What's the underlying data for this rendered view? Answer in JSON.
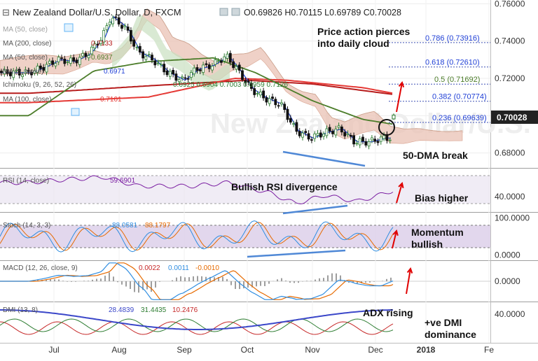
{
  "header": {
    "collapse_glyph": "⊟",
    "title": "New Zealand Dollar/U.S. Dollar, D, FXCM",
    "ohlc": "O0.69826  H0.70115  L0.69789  C0.70028"
  },
  "legend": {
    "main": [
      {
        "text": "MA (50, close)",
        "value": ""
      },
      {
        "text": "MA (200, close)",
        "value": "0.7133"
      },
      {
        "text": "MA (50, close)",
        "value": "0.6937"
      },
      {
        "text": "MA (5, close)",
        "value": "0.6971"
      },
      {
        "text": "Ichimoku (9, 26, 52, 26)",
        "value": "0.6925  0.6904  0.7003  0.6959  0.7126"
      },
      {
        "text": "MA (100, close)",
        "value": "0.7101"
      }
    ],
    "rsi": {
      "text": "RSI (14, close)",
      "value": "59.6901"
    },
    "stoch": {
      "text": "Stoch (14, 3, 3)",
      "value1": "88.0581",
      "value2": "88.1797"
    },
    "macd": {
      "text": "MACD (12, 26, close, 9)",
      "v1": "0.0022",
      "v2": "0.0011",
      "v3": "-0.0010"
    },
    "dmi": {
      "text": "DMI (13, 8)",
      "v1": "28.4839",
      "v2": "31.4435",
      "v3": "10.2476"
    }
  },
  "annotations": {
    "cloud": "Price action pierces into daily cloud",
    "dma_break": "50-DMA break",
    "rsi_div": "Bullish RSI  divergence",
    "bias": "Bias higher",
    "momentum": "Momentum bullish",
    "adx": "ADX rising",
    "dmi": "+ve DMI dominance"
  },
  "fibonacci": [
    {
      "ratio": "0.786",
      "value": 0.73916,
      "label": "0.786 (0.73916)"
    },
    {
      "ratio": "0.618",
      "value": 0.7261,
      "label": "0.618 (0.72610)"
    },
    {
      "ratio": "0.5",
      "value": 0.71692,
      "label": "0.5 (0.71692)"
    },
    {
      "ratio": "0.382",
      "value": 0.70774,
      "label": "0.382 (0.70774)"
    },
    {
      "ratio": "0.236",
      "value": 0.69639,
      "label": "0.236 (0.69639)"
    }
  ],
  "price_tag": "0.70028",
  "colors": {
    "price_tag_bg": "#222222",
    "candle_up": "#2e7d32",
    "candle_down": "#111111",
    "ma200": "#b71c1c",
    "ma100": "#e53935",
    "ma50": "#4c7d2a",
    "ma5": "#1f3fd6",
    "cloud_bear": "#e9c2b4",
    "cloud_bull": "#c9dfc0",
    "rsi_line": "#7b1fa2",
    "stoch_k": "#2f8de0",
    "stoch_d": "#e66a00",
    "macd_line": "#2f8de0",
    "macd_signal": "#e66a00",
    "adx": "#3b47c9",
    "di_plus": "#2e7d32",
    "di_minus": "#c62828",
    "annotation_arrow": "#e00000",
    "divergence_line": "#4f88d6"
  },
  "chart_data": [
    {
      "type": "candlestick",
      "title": "New Zealand Dollar/U.S. Dollar, D, FXCM",
      "x_tick_labels": [
        "Jul",
        "Aug",
        "Sep",
        "Oct",
        "Nov",
        "Dec",
        "2018",
        "Fe"
      ],
      "y_tick_labels": [
        "0.76000",
        "0.74000",
        "0.72000",
        "0.68000"
      ],
      "ylim": [
        0.6735,
        0.7605
      ],
      "open": 0.69826,
      "high": 0.70115,
      "low": 0.69789,
      "close": 0.70028,
      "approx_close_path": [
        {
          "x": "Jun 19",
          "y": 0.723
        },
        {
          "x": "Jun 26",
          "y": 0.726
        },
        {
          "x": "Jul 03",
          "y": 0.73
        },
        {
          "x": "Jul 10",
          "y": 0.729
        },
        {
          "x": "Jul 17",
          "y": 0.733
        },
        {
          "x": "Jul 24",
          "y": 0.742
        },
        {
          "x": "Jul 28",
          "y": 0.753
        },
        {
          "x": "Aug 04",
          "y": 0.747
        },
        {
          "x": "Aug 10",
          "y": 0.734
        },
        {
          "x": "Aug 17",
          "y": 0.73
        },
        {
          "x": "Aug 24",
          "y": 0.723
        },
        {
          "x": "Aug 31",
          "y": 0.719
        },
        {
          "x": "Sep 07",
          "y": 0.725
        },
        {
          "x": "Sep 14",
          "y": 0.727
        },
        {
          "x": "Sep 21",
          "y": 0.732
        },
        {
          "x": "Sep 26",
          "y": 0.725
        },
        {
          "x": "Oct 03",
          "y": 0.714
        },
        {
          "x": "Oct 10",
          "y": 0.709
        },
        {
          "x": "Oct 17",
          "y": 0.706
        },
        {
          "x": "Oct 20",
          "y": 0.7
        },
        {
          "x": "Oct 24",
          "y": 0.692
        },
        {
          "x": "Oct 31",
          "y": 0.688
        },
        {
          "x": "Nov 07",
          "y": 0.691
        },
        {
          "x": "Nov 14",
          "y": 0.693
        },
        {
          "x": "Nov 21",
          "y": 0.686
        },
        {
          "x": "Nov 28",
          "y": 0.686
        },
        {
          "x": "Dec 05",
          "y": 0.688
        },
        {
          "x": "Dec 10",
          "y": 0.688
        },
        {
          "x": "Dec 14",
          "y": 0.696
        },
        {
          "x": "Dec 19",
          "y": 0.7003
        }
      ],
      "ma200": [
        {
          "x": "Jun 19",
          "y": 0.712
        },
        {
          "x": "Aug 15",
          "y": 0.716
        },
        {
          "x": "Oct 01",
          "y": 0.719
        },
        {
          "x": "Nov 01",
          "y": 0.717
        },
        {
          "x": "Dec 19",
          "y": 0.71
        }
      ],
      "ma100": [
        {
          "x": "Jun 19",
          "y": 0.707
        },
        {
          "x": "Aug 15",
          "y": 0.71
        },
        {
          "x": "Sep 25",
          "y": 0.72
        },
        {
          "x": "Oct 20",
          "y": 0.719
        },
        {
          "x": "Nov 25",
          "y": 0.715
        },
        {
          "x": "Dec 19",
          "y": 0.71
        }
      ],
      "ma50": [
        {
          "x": "Jun 19",
          "y": 0.7
        },
        {
          "x": "Jul 20",
          "y": 0.724
        },
        {
          "x": "Aug 15",
          "y": 0.729
        },
        {
          "x": "Sep 15",
          "y": 0.731
        },
        {
          "x": "Oct 05",
          "y": 0.723
        },
        {
          "x": "Nov 01",
          "y": 0.708
        },
        {
          "x": "Nov 25",
          "y": 0.698
        },
        {
          "x": "Dec 19",
          "y": 0.6937
        }
      ]
    },
    {
      "type": "line",
      "title": "RSI (14, close)",
      "y_tick_labels": [
        "40.0000"
      ],
      "ylim": [
        20,
        78
      ],
      "last": 59.6901,
      "approx_values": [
        {
          "x": "Jun 19",
          "y": 60
        },
        {
          "x": "Jul 05",
          "y": 64
        },
        {
          "x": "Jul 25",
          "y": 68
        },
        {
          "x": "Aug 10",
          "y": 55
        },
        {
          "x": "Sep 05",
          "y": 55
        },
        {
          "x": "Sep 22",
          "y": 60
        },
        {
          "x": "Oct 12",
          "y": 45
        },
        {
          "x": "Oct 24",
          "y": 30
        },
        {
          "x": "Nov 07",
          "y": 42
        },
        {
          "x": "Nov 22",
          "y": 33
        },
        {
          "x": "Dec 05",
          "y": 44
        },
        {
          "x": "Dec 19",
          "y": 59.7
        }
      ]
    },
    {
      "type": "line",
      "title": "Stoch (14, 3, 3)",
      "y_tick_labels": [
        "100.0000",
        "0.0000"
      ],
      "ylim": [
        -10,
        110
      ],
      "series": [
        {
          "name": "%K",
          "last": 88.0581
        },
        {
          "name": "%D",
          "last": 88.1797
        }
      ]
    },
    {
      "type": "line",
      "title": "MACD (12, 26, close, 9)",
      "y_tick_labels": [
        "0.0000"
      ],
      "ylim": [
        -0.008,
        0.008
      ],
      "series": [
        {
          "name": "MACD",
          "last": 0.0022
        },
        {
          "name": "Signal",
          "last": 0.0011
        },
        {
          "name": "Histogram",
          "last": -0.001
        }
      ]
    },
    {
      "type": "line",
      "title": "DMI (13, 8)",
      "y_tick_labels": [
        "40.0000"
      ],
      "ylim": [
        0,
        55
      ],
      "series": [
        {
          "name": "ADX",
          "last": 28.4839
        },
        {
          "name": "+DI",
          "last": 31.4435
        },
        {
          "name": "-DI",
          "last": 10.2476
        }
      ]
    }
  ]
}
